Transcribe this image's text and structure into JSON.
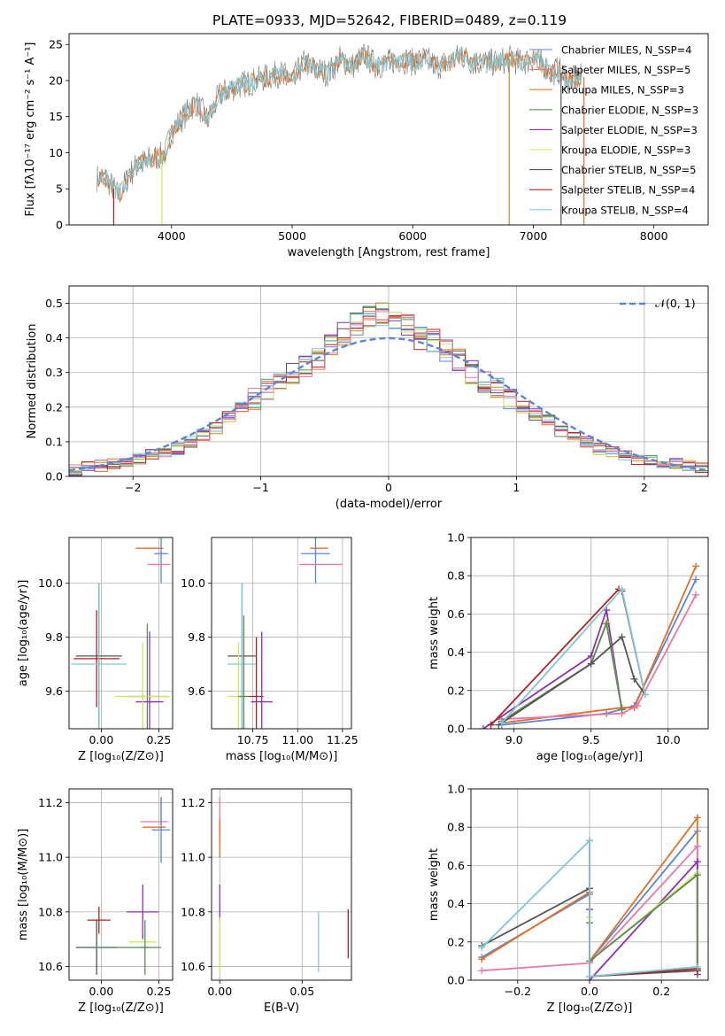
{
  "chart_data": [
    {
      "type": "line",
      "title": "PLATE=0933, MJD=52642, FIBERID=0489, z=0.119",
      "xlabel": "wavelength [Angstrom, rest frame]",
      "ylabel": "Flux [fλ10⁻¹⁷ erg cm⁻² s⁻¹ A⁻¹]",
      "xlim": [
        3150,
        8450
      ],
      "ylim": [
        0,
        26.5
      ],
      "xticks": [
        "4000",
        "5000",
        "6000",
        "7000",
        "8000"
      ],
      "yticks": [
        "0",
        "5",
        "10",
        "15",
        "20",
        "25"
      ],
      "legend_position": "right",
      "legend": [
        {
          "label": "Chabrier MILES, N_SSP=4",
          "color": "#5b86d4"
        },
        {
          "label": "Salpeter MILES, N_SSP=5",
          "color": "#e57a7a"
        },
        {
          "label": "Kroupa MILES, N_SSP=3",
          "color": "#c98a25"
        },
        {
          "label": "Chabrier ELODIE, N_SSP=3",
          "color": "#5a8a5a"
        },
        {
          "label": "Salpeter ELODIE, N_SSP=3",
          "color": "#8f2fb3"
        },
        {
          "label": "Kroupa ELODIE, N_SSP=3",
          "color": "#d4e35a"
        },
        {
          "label": "Chabrier STELIB, N_SSP=5",
          "color": "#555555"
        },
        {
          "label": "Salpeter STELIB, N_SSP=4",
          "color": "#b22222"
        },
        {
          "label": "Kroupa STELIB, N_SSP=4",
          "color": "#7fc8d8"
        }
      ],
      "series_continuum": {
        "x": [
          3380,
          3450,
          3500,
          3560,
          3620,
          3700,
          3800,
          3900,
          3950,
          4000,
          4100,
          4200,
          4300,
          4400,
          4500,
          4600,
          4700,
          4800,
          4900,
          5000,
          5100,
          5200,
          5300,
          5400,
          5500,
          5600,
          5700,
          5800,
          5900,
          6000,
          6100,
          6200,
          6300,
          6400,
          6500,
          6600,
          6700,
          6800,
          6900,
          7000,
          7100,
          7150,
          7200,
          7300,
          7400
        ],
        "y": [
          6.5,
          6.5,
          5.5,
          4.0,
          6.0,
          8.0,
          9.0,
          9.5,
          10.0,
          13.0,
          15.0,
          17.0,
          14.5,
          18.0,
          19.0,
          19.5,
          20.0,
          20.5,
          21.0,
          20.0,
          22.5,
          21.5,
          21.0,
          23.0,
          22.0,
          23.5,
          22.0,
          22.5,
          23.0,
          22.5,
          23.0,
          22.0,
          22.5,
          23.5,
          22.5,
          22.5,
          22.5,
          23.0,
          22.5,
          23.0,
          22.0,
          21.0,
          21.5,
          20.0,
          20.5
        ]
      },
      "drop_lines": [
        {
          "x": 3520,
          "color": "#b22222"
        },
        {
          "x": 3920,
          "color": "#d4e35a"
        },
        {
          "x": 6800,
          "color": "#c98a25"
        },
        {
          "x": 7230,
          "color": "#555555"
        },
        {
          "x": 7420,
          "color": "#e0702a"
        }
      ]
    },
    {
      "type": "line",
      "xlabel": "(data-model)/error",
      "ylabel": "Normed distribution",
      "xlim": [
        -2.5,
        2.5
      ],
      "ylim": [
        0,
        0.55
      ],
      "xticks": [
        "−2",
        "−1",
        "0",
        "1",
        "2"
      ],
      "yticks": [
        "0.0",
        "0.1",
        "0.2",
        "0.3",
        "0.4",
        "0.5"
      ],
      "legend": [
        {
          "label": "𝒩(0, 1)",
          "color": "#5b86d4"
        }
      ],
      "grid": true,
      "bin_edges_start": -2.5,
      "bin_width": 0.1,
      "hist_base": [
        0.02,
        0.025,
        0.03,
        0.035,
        0.04,
        0.05,
        0.06,
        0.07,
        0.08,
        0.1,
        0.12,
        0.14,
        0.17,
        0.2,
        0.22,
        0.25,
        0.27,
        0.3,
        0.32,
        0.34,
        0.38,
        0.41,
        0.44,
        0.46,
        0.47,
        0.45,
        0.44,
        0.4,
        0.39,
        0.36,
        0.34,
        0.3,
        0.27,
        0.25,
        0.22,
        0.2,
        0.18,
        0.16,
        0.13,
        0.12,
        0.1,
        0.08,
        0.07,
        0.06,
        0.05,
        0.045,
        0.04,
        0.035,
        0.03,
        0.025
      ],
      "hist_series_colors": [
        "#5b86d4",
        "#e0702a",
        "#c98a25",
        "#5a8a5a",
        "#8f2fb3",
        "#d4e35a",
        "#555555",
        "#b22222",
        "#7fc8d8",
        "#e57aa8"
      ]
    },
    {
      "type": "scatter",
      "xlabel": "Z [log₁₀(Z/Z⊙)]",
      "ylabel": "age  [log₁₀(age/yr)]",
      "xlim": [
        -0.14,
        0.31
      ],
      "ylim": [
        9.46,
        10.17
      ],
      "xticks": [
        "0.00",
        "0.25"
      ],
      "yticks": [
        "9.6",
        "9.8",
        "10.0"
      ],
      "grid": true,
      "points": [
        {
          "x": 0.21,
          "y": 10.13,
          "xerr": 0.06,
          "yerr": 0.0,
          "color": "#e0702a"
        },
        {
          "x": 0.26,
          "y": 10.11,
          "xerr": 0.03,
          "yerr": 0.11,
          "color": "#5b86d4"
        },
        {
          "x": 0.25,
          "y": 10.07,
          "xerr": 0.05,
          "yerr": 0.0,
          "color": "#e57aa8"
        },
        {
          "x": -0.02,
          "y": 9.72,
          "xerr": 0.1,
          "yerr": 0.18,
          "color": "#b22222"
        },
        {
          "x": -0.01,
          "y": 9.73,
          "xerr": 0.1,
          "yerr": 0.27,
          "color": "#555555"
        },
        {
          "x": -0.01,
          "y": 9.7,
          "xerr": 0.12,
          "yerr": 0.3,
          "color": "#7fc8d8"
        },
        {
          "x": 0.2,
          "y": 9.58,
          "xerr": 0.09,
          "yerr": 0.27,
          "color": "#5a8a5a"
        },
        {
          "x": 0.21,
          "y": 9.56,
          "xerr": 0.06,
          "yerr": 0.26,
          "color": "#8f2fb3"
        },
        {
          "x": 0.18,
          "y": 9.58,
          "xerr": 0.12,
          "yerr": 0.2,
          "color": "#d4e35a"
        }
      ]
    },
    {
      "type": "scatter",
      "xlabel": "mass [log₁₀(M/M⊙)]",
      "ylabel": "",
      "xlim": [
        10.52,
        11.3
      ],
      "ylim": [
        9.46,
        10.17
      ],
      "xticks": [
        "10.75",
        "11.00",
        "11.25"
      ],
      "yticks": [
        "9.6",
        "9.8",
        "10.0"
      ],
      "grid": true,
      "points": [
        {
          "x": 11.12,
          "y": 10.13,
          "xerr": 0.05,
          "yerr": 0.0,
          "color": "#e0702a"
        },
        {
          "x": 11.1,
          "y": 10.11,
          "xerr": 0.08,
          "yerr": 0.11,
          "color": "#5b86d4"
        },
        {
          "x": 11.13,
          "y": 10.07,
          "xerr": 0.12,
          "yerr": 0.0,
          "color": "#e57aa8"
        },
        {
          "x": 10.69,
          "y": 9.73,
          "xerr": 0.08,
          "yerr": 0.27,
          "color": "#555555"
        },
        {
          "x": 10.69,
          "y": 9.7,
          "xerr": 0.08,
          "yerr": 0.3,
          "color": "#7fc8d8"
        },
        {
          "x": 10.77,
          "y": 9.58,
          "xerr": 0.04,
          "yerr": 0.22,
          "color": "#b22222"
        },
        {
          "x": 10.8,
          "y": 9.56,
          "xerr": 0.06,
          "yerr": 0.26,
          "color": "#8f2fb3"
        },
        {
          "x": 10.67,
          "y": 9.58,
          "xerr": 0.06,
          "yerr": 0.2,
          "color": "#d4e35a"
        },
        {
          "x": 10.7,
          "y": 9.58,
          "xerr": 0.03,
          "yerr": 0.3,
          "color": "#5a8a5a"
        }
      ]
    },
    {
      "type": "line",
      "xlabel": "age  [log₁₀(age/yr)]",
      "ylabel": "mass weight",
      "xlim": [
        8.72,
        10.26
      ],
      "ylim": [
        0,
        1.0
      ],
      "xticks": [
        "9.0",
        "9.5",
        "10.0"
      ],
      "yticks": [
        "0.0",
        "0.2",
        "0.4",
        "0.6",
        "0.8",
        "1.0"
      ],
      "grid": true,
      "series": [
        {
          "color": "#5b86d4",
          "x": [
            8.92,
            9.6,
            9.78,
            10.18
          ],
          "y": [
            0.02,
            0.08,
            0.12,
            0.78
          ]
        },
        {
          "color": "#e0702a",
          "x": [
            8.92,
            9.7,
            9.78,
            10.18
          ],
          "y": [
            0.03,
            0.11,
            0.11,
            0.85
          ]
        },
        {
          "color": "#e57aa8",
          "x": [
            8.92,
            9.7,
            9.8,
            10.18
          ],
          "y": [
            0.05,
            0.08,
            0.12,
            0.7
          ]
        },
        {
          "color": "#8f2fb3",
          "x": [
            8.8,
            9.5,
            9.6,
            9.7
          ],
          "y": [
            0.0,
            0.38,
            0.62,
            0.1
          ]
        },
        {
          "color": "#d4e35a",
          "x": [
            8.92,
            9.5,
            9.6,
            9.7
          ],
          "y": [
            0.04,
            0.34,
            0.56,
            0.1
          ]
        },
        {
          "color": "#5a8a5a",
          "x": [
            8.92,
            9.5,
            9.6,
            9.7
          ],
          "y": [
            0.04,
            0.34,
            0.55,
            0.1
          ]
        },
        {
          "color": "#555555",
          "x": [
            8.9,
            9.5,
            9.7,
            9.78,
            9.85
          ],
          "y": [
            0.02,
            0.34,
            0.48,
            0.26,
            0.18
          ]
        },
        {
          "color": "#b22222",
          "x": [
            8.85,
            9.68,
            9.7,
            9.85
          ],
          "y": [
            0.02,
            0.73,
            0.72,
            0.18
          ]
        },
        {
          "color": "#7fc8d8",
          "x": [
            8.92,
            9.7,
            9.85
          ],
          "y": [
            0.03,
            0.73,
            0.18
          ]
        }
      ]
    },
    {
      "type": "scatter",
      "xlabel": "Z [log₁₀(Z/Z⊙)]",
      "ylabel": "mass [log₁₀(M/M⊙)]",
      "xlim": [
        -0.14,
        0.31
      ],
      "ylim": [
        10.55,
        11.25
      ],
      "xticks": [
        "0.00",
        "0.25"
      ],
      "yticks": [
        "10.6",
        "10.8",
        "11.0",
        "11.2"
      ],
      "grid": true,
      "points": [
        {
          "x": 0.26,
          "y": 11.17,
          "xerr": 0.0,
          "yerr": 0.05,
          "color": "#e57aa8"
        },
        {
          "x": 0.23,
          "y": 11.13,
          "xerr": 0.06,
          "yerr": 0.0,
          "color": "#e57aa8"
        },
        {
          "x": 0.23,
          "y": 11.11,
          "xerr": 0.05,
          "yerr": 0.0,
          "color": "#e0702a"
        },
        {
          "x": 0.26,
          "y": 11.1,
          "xerr": 0.04,
          "yerr": 0.12,
          "color": "#5b86d4"
        },
        {
          "x": 0.18,
          "y": 10.8,
          "xerr": 0.07,
          "yerr": 0.1,
          "color": "#8f2fb3"
        },
        {
          "x": -0.01,
          "y": 10.77,
          "xerr": 0.05,
          "yerr": 0.05,
          "color": "#b22222"
        },
        {
          "x": 0.18,
          "y": 10.69,
          "xerr": 0.06,
          "yerr": 0.0,
          "color": "#d4e35a"
        },
        {
          "x": 0.19,
          "y": 10.67,
          "xerr": 0.02,
          "yerr": 0.1,
          "color": "#5a8a5a"
        },
        {
          "x": -0.02,
          "y": 10.67,
          "xerr": 0.09,
          "yerr": 0.1,
          "color": "#555555"
        },
        {
          "x": 0.0,
          "y": 10.67,
          "xerr": 0.06,
          "yerr": 0.0,
          "color": "#7fc8d8"
        },
        {
          "x": 0.1,
          "y": 10.67,
          "xerr": 0.16,
          "yerr": 0.0,
          "color": "#5a8a5a"
        }
      ]
    },
    {
      "type": "scatter",
      "xlabel": "E(B-V)",
      "ylabel": "",
      "xlim": [
        -0.005,
        0.08
      ],
      "ylim": [
        10.55,
        11.25
      ],
      "xticks": [
        "0.00",
        "0.05"
      ],
      "yticks": [
        "10.6",
        "10.8",
        "11.0",
        "11.2"
      ],
      "grid": true,
      "points": [
        {
          "x": 0.0,
          "y": 11.14,
          "xerr": 0.0,
          "yerr": 0.08,
          "color": "#e57aa8"
        },
        {
          "x": 0.0,
          "y": 11.07,
          "xerr": 0.0,
          "yerr": 0.07,
          "color": "#e0702a"
        },
        {
          "x": 0.0,
          "y": 10.83,
          "xerr": 0.0,
          "yerr": 0.07,
          "color": "#8f2fb3"
        },
        {
          "x": 0.0,
          "y": 10.68,
          "xerr": 0.0,
          "yerr": 0.1,
          "color": "#d4e35a"
        },
        {
          "x": 0.06,
          "y": 10.69,
          "xerr": 0.0,
          "yerr": 0.11,
          "color": "#7fc8d8"
        },
        {
          "x": 0.078,
          "y": 10.72,
          "xerr": 0.0,
          "yerr": 0.09,
          "color": "#b22222"
        }
      ]
    },
    {
      "type": "line",
      "xlabel": "Z [log₁₀(Z/Z⊙)]",
      "ylabel": "mass weight",
      "xlim": [
        -0.33,
        0.33
      ],
      "ylim": [
        0,
        1.0
      ],
      "xticks": [
        "−0.2",
        "0.0",
        "0.2"
      ],
      "yticks": [
        "0.0",
        "0.2",
        "0.4",
        "0.6",
        "0.8",
        "1.0"
      ],
      "grid": true,
      "series": [
        {
          "color": "#5b86d4",
          "x": [
            -0.3,
            0.0,
            0.0,
            0.3
          ],
          "y": [
            0.12,
            0.45,
            0.1,
            0.78
          ]
        },
        {
          "color": "#e0702a",
          "x": [
            -0.3,
            0.0,
            0.0,
            0.3,
            0.3
          ],
          "y": [
            0.11,
            0.46,
            0.1,
            0.85,
            0.03
          ]
        },
        {
          "color": "#e57aa8",
          "x": [
            -0.3,
            0.0,
            0.3,
            0.3
          ],
          "y": [
            0.05,
            0.09,
            0.7,
            0.05
          ]
        },
        {
          "color": "#8f2fb3",
          "x": [
            0.0,
            0.0,
            0.3,
            0.3
          ],
          "y": [
            0.37,
            0.0,
            0.62,
            0.03
          ]
        },
        {
          "color": "#d4e35a",
          "x": [
            0.0,
            0.0,
            0.3,
            0.3
          ],
          "y": [
            0.33,
            0.1,
            0.56,
            0.05
          ]
        },
        {
          "color": "#5a8a5a",
          "x": [
            0.0,
            0.0,
            0.3,
            0.3
          ],
          "y": [
            0.3,
            0.1,
            0.55,
            0.05
          ]
        },
        {
          "color": "#555555",
          "x": [
            -0.3,
            0.0,
            0.0,
            0.3
          ],
          "y": [
            0.18,
            0.48,
            0.02,
            0.05
          ]
        },
        {
          "color": "#b22222",
          "x": [
            0.0,
            0.0,
            0.3
          ],
          "y": [
            0.73,
            0.02,
            0.06
          ]
        },
        {
          "color": "#7fc8d8",
          "x": [
            -0.3,
            0.0,
            0.0,
            0.3
          ],
          "y": [
            0.17,
            0.73,
            0.02,
            0.07
          ]
        }
      ]
    }
  ]
}
